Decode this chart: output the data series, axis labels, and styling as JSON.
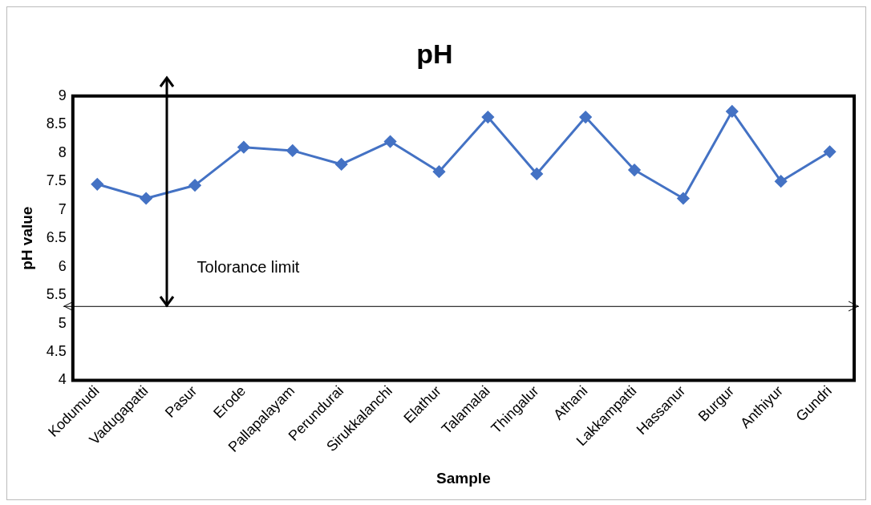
{
  "chart_data": {
    "type": "line",
    "title": "pH",
    "xlabel": "Sample",
    "ylabel": "pH value",
    "categories": [
      "Kodumudi",
      "Vadugapatti",
      "Pasur",
      "Erode",
      "Pallapalayam",
      "Perundurai",
      "Sirukkalanchi",
      "Elathur",
      "Talamalai",
      "Thingalur",
      "Athani",
      "Lakkampatti",
      "Hassanur",
      "Burgur",
      "Anthiyur",
      "Gundri"
    ],
    "series": [
      {
        "color": "#4472c4",
        "values": [
          7.45,
          7.2,
          7.43,
          8.1,
          8.04,
          7.8,
          8.2,
          7.67,
          8.63,
          7.63,
          8.63,
          7.7,
          7.2,
          8.73,
          7.5,
          8.02
        ]
      }
    ],
    "ylim": [
      4,
      9
    ],
    "yticks": [
      4,
      4.5,
      5,
      5.5,
      6,
      6.5,
      7,
      7.5,
      8,
      8.5,
      9
    ],
    "grid": false,
    "legend": false,
    "marker": "diamond",
    "line_style": "solid",
    "ref_lines": [
      {
        "axis": "y",
        "value": 5.3,
        "label": "Tolorance limit",
        "color": "#000000"
      }
    ]
  }
}
